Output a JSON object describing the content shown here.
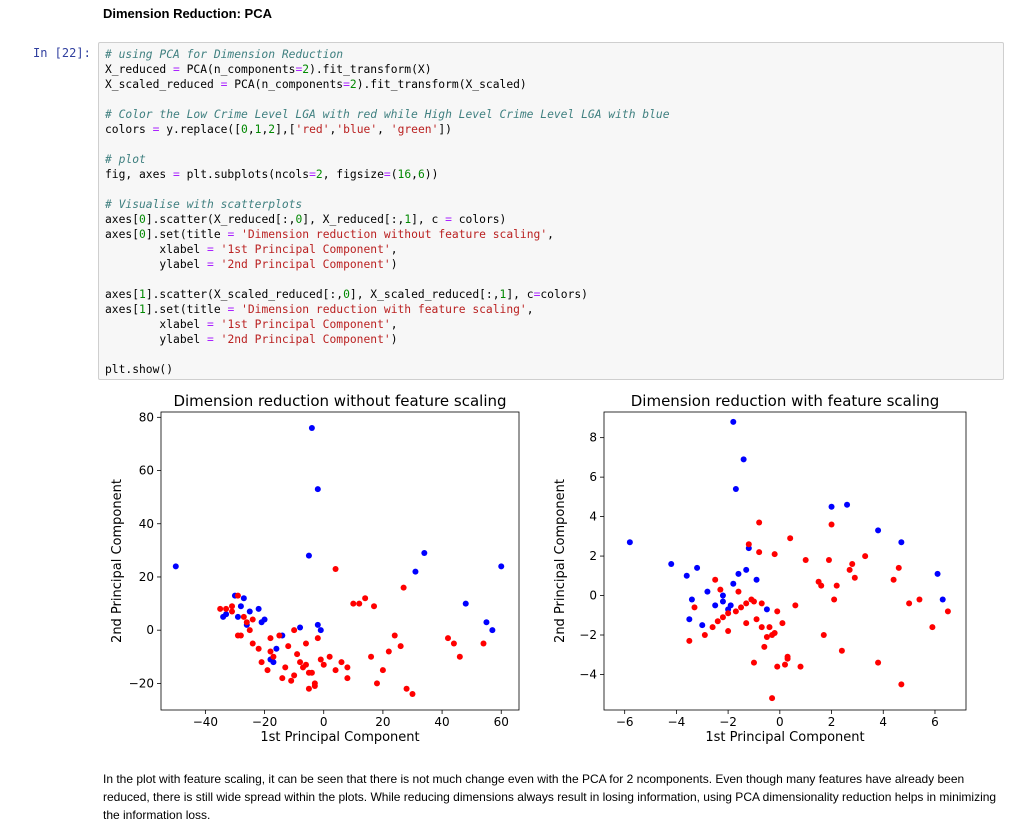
{
  "notebook": {
    "heading": "Dimension Reduction: PCA",
    "prompt": "In [22]:",
    "code_lines": [
      [
        {
          "t": "# using PCA for Dimension Reduction",
          "c": "com"
        }
      ],
      [
        {
          "t": "X_reduced "
        },
        {
          "t": "=",
          "c": "op"
        },
        {
          "t": " PCA(n_components"
        },
        {
          "t": "=",
          "c": "op"
        },
        {
          "t": "2",
          "c": "num"
        },
        {
          "t": ").fit_transform(X)"
        }
      ],
      [
        {
          "t": "X_scaled_reduced "
        },
        {
          "t": "=",
          "c": "op"
        },
        {
          "t": " PCA(n_components"
        },
        {
          "t": "=",
          "c": "op"
        },
        {
          "t": "2",
          "c": "num"
        },
        {
          "t": ").fit_transform(X_scaled)"
        }
      ],
      [],
      [
        {
          "t": "# Color the Low Crime Level LGA with red while High Level Crime Level LGA with blue",
          "c": "com"
        }
      ],
      [
        {
          "t": "colors "
        },
        {
          "t": "=",
          "c": "op"
        },
        {
          "t": " y.replace(["
        },
        {
          "t": "0",
          "c": "num"
        },
        {
          "t": ","
        },
        {
          "t": "1",
          "c": "num"
        },
        {
          "t": ","
        },
        {
          "t": "2",
          "c": "num"
        },
        {
          "t": "],["
        },
        {
          "t": "'red'",
          "c": "str"
        },
        {
          "t": ","
        },
        {
          "t": "'blue'",
          "c": "str"
        },
        {
          "t": ", "
        },
        {
          "t": "'green'",
          "c": "str"
        },
        {
          "t": "])"
        }
      ],
      [],
      [
        {
          "t": "# plot",
          "c": "com"
        }
      ],
      [
        {
          "t": "fig, axes "
        },
        {
          "t": "=",
          "c": "op"
        },
        {
          "t": " plt.subplots(ncols"
        },
        {
          "t": "=",
          "c": "op"
        },
        {
          "t": "2",
          "c": "num"
        },
        {
          "t": ", figsize"
        },
        {
          "t": "=",
          "c": "op"
        },
        {
          "t": "("
        },
        {
          "t": "16",
          "c": "num"
        },
        {
          "t": ","
        },
        {
          "t": "6",
          "c": "num"
        },
        {
          "t": "))"
        }
      ],
      [],
      [
        {
          "t": "# Visualise with scatterplots",
          "c": "com"
        }
      ],
      [
        {
          "t": "axes["
        },
        {
          "t": "0",
          "c": "num"
        },
        {
          "t": "].scatter(X_reduced[:,"
        },
        {
          "t": "0",
          "c": "num"
        },
        {
          "t": "], X_reduced[:,"
        },
        {
          "t": "1",
          "c": "num"
        },
        {
          "t": "], c "
        },
        {
          "t": "=",
          "c": "op"
        },
        {
          "t": " colors)"
        }
      ],
      [
        {
          "t": "axes["
        },
        {
          "t": "0",
          "c": "num"
        },
        {
          "t": "].set(title "
        },
        {
          "t": "=",
          "c": "op"
        },
        {
          "t": " "
        },
        {
          "t": "'Dimension reduction without feature scaling'",
          "c": "str"
        },
        {
          "t": ","
        }
      ],
      [
        {
          "t": "        xlabel "
        },
        {
          "t": "=",
          "c": "op"
        },
        {
          "t": " "
        },
        {
          "t": "'1st Principal Component'",
          "c": "str"
        },
        {
          "t": ","
        }
      ],
      [
        {
          "t": "        ylabel "
        },
        {
          "t": "=",
          "c": "op"
        },
        {
          "t": " "
        },
        {
          "t": "'2nd Principal Component'",
          "c": "str"
        },
        {
          "t": ")"
        }
      ],
      [],
      [
        {
          "t": "axes["
        },
        {
          "t": "1",
          "c": "num"
        },
        {
          "t": "].scatter(X_scaled_reduced[:,"
        },
        {
          "t": "0",
          "c": "num"
        },
        {
          "t": "], X_scaled_reduced[:,"
        },
        {
          "t": "1",
          "c": "num"
        },
        {
          "t": "], c"
        },
        {
          "t": "=",
          "c": "op"
        },
        {
          "t": "colors)"
        }
      ],
      [
        {
          "t": "axes["
        },
        {
          "t": "1",
          "c": "num"
        },
        {
          "t": "].set(title "
        },
        {
          "t": "=",
          "c": "op"
        },
        {
          "t": " "
        },
        {
          "t": "'Dimension reduction with feature scaling'",
          "c": "str"
        },
        {
          "t": ","
        }
      ],
      [
        {
          "t": "        xlabel "
        },
        {
          "t": "=",
          "c": "op"
        },
        {
          "t": " "
        },
        {
          "t": "'1st Principal Component'",
          "c": "str"
        },
        {
          "t": ","
        }
      ],
      [
        {
          "t": "        ylabel "
        },
        {
          "t": "=",
          "c": "op"
        },
        {
          "t": " "
        },
        {
          "t": "'2nd Principal Component'",
          "c": "str"
        },
        {
          "t": ")"
        }
      ],
      [],
      [
        {
          "t": "plt.show()"
        }
      ]
    ],
    "paragraph": "In the plot with feature scaling, it can be seen that there is not much change even with the PCA for 2 ncomponents. Even though many features have already been reduced, there is still wide spread within the plots. While reducing dimensions always result in losing information, using PCA dimensionality reduction helps in minimizing the information loss."
  },
  "colors": {
    "red": "#ff0000",
    "blue": "#0000ff"
  },
  "chart_data": [
    {
      "type": "scatter",
      "title": "Dimension reduction without feature scaling",
      "xlabel": "1st Principal Component",
      "ylabel": "2nd Principal Component",
      "xlim": [
        -55,
        66
      ],
      "ylim": [
        -30,
        82
      ],
      "xticks": [
        -40,
        -20,
        0,
        20,
        40,
        60
      ],
      "yticks": [
        -20,
        0,
        20,
        40,
        60,
        80
      ],
      "grid": false,
      "series": [
        {
          "color": "blue",
          "x": [
            -50,
            -4,
            -2,
            -5,
            34,
            31,
            60,
            -30,
            -28,
            -25,
            -22,
            -34,
            -33,
            -26,
            -20,
            -8,
            -14,
            -16,
            -18,
            -2,
            -1,
            48,
            55,
            57,
            -27,
            -29,
            -21,
            -17
          ],
          "y": [
            24,
            76,
            53,
            28,
            29,
            22,
            24,
            13,
            9,
            7,
            8,
            5,
            6,
            2,
            4,
            1,
            -2,
            -7,
            -11,
            2,
            0,
            10,
            3,
            0,
            12,
            5,
            3,
            -12
          ]
        },
        {
          "color": "red",
          "x": [
            -29,
            -35,
            -33,
            -31,
            -28,
            -27,
            -26,
            -25,
            -24,
            -22,
            -21,
            -19,
            -18,
            -17,
            -15,
            -14,
            -13,
            -12,
            -11,
            -10,
            -9,
            -8,
            -7,
            -6,
            -5,
            -4,
            -3,
            -2,
            -1,
            0,
            2,
            4,
            6,
            8,
            10,
            12,
            14,
            16,
            17,
            18,
            20,
            22,
            24,
            26,
            28,
            30,
            42,
            44,
            46,
            54,
            4,
            8,
            27,
            -24,
            -29,
            -31,
            -18,
            -10,
            -6,
            -5,
            -3
          ],
          "y": [
            13,
            8,
            8,
            7,
            -2,
            5,
            3,
            0,
            -5,
            -7,
            -12,
            -15,
            -8,
            -10,
            -2,
            -18,
            -14,
            -6,
            -19,
            -17,
            -9,
            -12,
            -14,
            -13,
            -22,
            -16,
            -21,
            -3,
            -11,
            -13,
            -10,
            -15,
            -12,
            -18,
            10,
            10,
            12,
            -10,
            9,
            -20,
            -15,
            -8,
            -2,
            -6,
            -22,
            -24,
            -3,
            -5,
            -10,
            -5,
            23,
            -14,
            16,
            4,
            -2,
            9,
            -3,
            0,
            -5,
            -16,
            -20
          ]
        }
      ]
    },
    {
      "type": "scatter",
      "title": "Dimension reduction with feature scaling",
      "xlabel": "1st Principal Component",
      "ylabel": "2nd Principal Component",
      "xlim": [
        -6.8,
        7.2
      ],
      "ylim": [
        -5.8,
        9.3
      ],
      "xticks": [
        -6,
        -4,
        -2,
        0,
        2,
        4,
        6
      ],
      "yticks": [
        -4,
        -2,
        0,
        2,
        4,
        6,
        8
      ],
      "grid": false,
      "series": [
        {
          "color": "blue",
          "x": [
            -1.8,
            -1.4,
            -1.7,
            2.0,
            2.6,
            3.8,
            4.7,
            6.1,
            6.3,
            -5.8,
            -4.2,
            -3.6,
            -3.2,
            -3.4,
            -2.8,
            -2.2,
            -1.6,
            -1.8,
            -1.3,
            -1.2,
            -0.9,
            -0.5,
            -2.5,
            -3.0,
            -3.5,
            -2.0,
            -1.9,
            -2.2
          ],
          "y": [
            8.8,
            6.9,
            5.4,
            4.5,
            4.6,
            3.3,
            2.7,
            1.1,
            -0.2,
            2.7,
            1.6,
            1.0,
            1.4,
            -0.2,
            0.2,
            0.0,
            1.1,
            0.6,
            1.3,
            2.4,
            0.8,
            -0.7,
            -0.5,
            -1.5,
            -1.2,
            -0.7,
            -0.5,
            -0.3
          ]
        },
        {
          "color": "red",
          "x": [
            -0.8,
            2.0,
            0.4,
            -1.2,
            -0.8,
            -0.2,
            1.0,
            1.5,
            2.2,
            2.7,
            3.3,
            2.9,
            4.4,
            4.6,
            5.0,
            5.4,
            5.9,
            6.5,
            -3.5,
            -3.3,
            -2.9,
            -2.6,
            -2.4,
            -2.2,
            -2.0,
            -1.7,
            -1.5,
            -1.3,
            -1.1,
            -0.9,
            -0.7,
            -0.5,
            -0.3,
            -0.1,
            0.2,
            0.3,
            0.6,
            0.8,
            1.7,
            2.4,
            3.8,
            4.7,
            -1.0,
            -0.4,
            -0.2,
            -2.5,
            -2.3,
            -1.6,
            -1.3,
            -2.0,
            -1.0,
            -0.6,
            2.1,
            1.6,
            1.9,
            2.8,
            -0.1,
            0.3,
            0.1,
            -0.3,
            -0.7
          ],
          "y": [
            3.7,
            3.6,
            2.9,
            2.6,
            2.2,
            2.1,
            1.8,
            0.7,
            0.5,
            1.3,
            2.0,
            0.9,
            0.8,
            1.4,
            -0.4,
            -0.2,
            -1.6,
            -0.8,
            -2.3,
            -0.6,
            -2.0,
            -1.6,
            -1.3,
            -1.1,
            -0.9,
            -0.8,
            -0.6,
            -0.4,
            -0.2,
            -1.2,
            -1.6,
            -2.1,
            -2.0,
            -3.6,
            -3.5,
            -3.2,
            -0.5,
            -3.6,
            -2.0,
            -2.8,
            -3.4,
            -4.5,
            -3.4,
            -1.6,
            -1.9,
            0.8,
            0.3,
            0.2,
            -1.4,
            -1.8,
            -0.3,
            -2.6,
            -0.2,
            0.5,
            1.8,
            1.6,
            -0.8,
            -3.1,
            -1.4,
            -5.2,
            -0.4
          ]
        }
      ]
    }
  ]
}
